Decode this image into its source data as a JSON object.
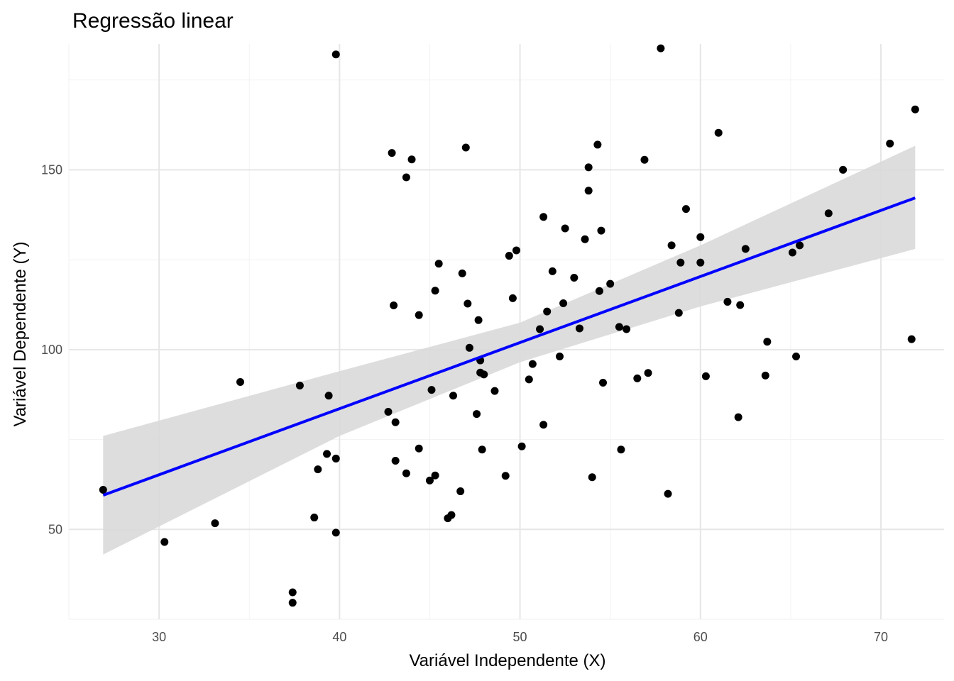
{
  "chart_data": {
    "type": "scatter",
    "title": "Regressão linear",
    "xlabel": "Variável Independente (X)",
    "ylabel": "Variável Dependente (Y)",
    "xlim": [
      25,
      73.5
    ],
    "ylim": [
      25,
      185
    ],
    "x_ticks": [
      30,
      40,
      50,
      60,
      70
    ],
    "y_ticks": [
      50,
      100,
      150
    ],
    "grid": true,
    "legend": "none",
    "colors": {
      "points": "#000000",
      "line": "#0000ff",
      "band": "#d9d9d9",
      "grid_major": "#e6e6e6",
      "grid_minor": "#f2f2f2"
    },
    "regression": {
      "x_start": 26.9,
      "y_start": 59.5,
      "x_end": 71.9,
      "y_end": 142.2,
      "band": [
        [
          26.9,
          43.0,
          76.0
        ],
        [
          40,
          76.0,
          94.0
        ],
        [
          50,
          96.5,
          107.5
        ],
        [
          60,
          112.0,
          129.0
        ],
        [
          71.9,
          128.0,
          156.7
        ]
      ]
    },
    "points": [
      [
        26.9,
        61.0
      ],
      [
        30.3,
        46.5
      ],
      [
        33.1,
        51.7
      ],
      [
        34.5,
        91.0
      ],
      [
        37.4,
        32.5
      ],
      [
        37.4,
        29.6
      ],
      [
        37.8,
        90.0
      ],
      [
        38.6,
        53.3
      ],
      [
        38.8,
        66.7
      ],
      [
        39.3,
        71.0
      ],
      [
        39.4,
        87.2
      ],
      [
        39.8,
        182.1
      ],
      [
        39.8,
        69.7
      ],
      [
        39.8,
        49.1
      ],
      [
        42.7,
        82.7
      ],
      [
        42.9,
        154.7
      ],
      [
        43.0,
        112.3
      ],
      [
        43.1,
        79.8
      ],
      [
        43.1,
        69.1
      ],
      [
        43.7,
        147.9
      ],
      [
        43.7,
        65.6
      ],
      [
        44.0,
        152.9
      ],
      [
        44.4,
        109.6
      ],
      [
        44.4,
        72.5
      ],
      [
        45.0,
        63.6
      ],
      [
        45.1,
        88.8
      ],
      [
        45.3,
        65.0
      ],
      [
        45.3,
        116.4
      ],
      [
        45.5,
        123.9
      ],
      [
        46.0,
        53.1
      ],
      [
        46.2,
        54.0
      ],
      [
        46.3,
        87.2
      ],
      [
        46.7,
        60.6
      ],
      [
        46.8,
        121.2
      ],
      [
        47.0,
        156.2
      ],
      [
        47.1,
        112.8
      ],
      [
        47.2,
        100.5
      ],
      [
        47.6,
        82.1
      ],
      [
        47.7,
        108.2
      ],
      [
        47.8,
        97.0
      ],
      [
        47.8,
        93.6
      ],
      [
        47.9,
        72.2
      ],
      [
        48.0,
        93.1
      ],
      [
        48.6,
        88.5
      ],
      [
        49.2,
        64.9
      ],
      [
        49.4,
        126.1
      ],
      [
        49.6,
        114.3
      ],
      [
        49.8,
        127.6
      ],
      [
        50.1,
        73.1
      ],
      [
        50.5,
        91.7
      ],
      [
        50.7,
        96.0
      ],
      [
        51.1,
        105.7
      ],
      [
        51.3,
        136.9
      ],
      [
        51.3,
        79.1
      ],
      [
        51.5,
        110.6
      ],
      [
        51.8,
        121.8
      ],
      [
        52.2,
        98.1
      ],
      [
        52.4,
        112.9
      ],
      [
        52.5,
        133.7
      ],
      [
        53.0,
        120.0
      ],
      [
        53.3,
        105.9
      ],
      [
        53.6,
        130.7
      ],
      [
        53.8,
        144.2
      ],
      [
        53.8,
        150.7
      ],
      [
        54.0,
        64.5
      ],
      [
        54.3,
        157.0
      ],
      [
        54.4,
        116.3
      ],
      [
        54.5,
        133.1
      ],
      [
        54.6,
        90.8
      ],
      [
        55.0,
        118.3
      ],
      [
        55.5,
        106.3
      ],
      [
        55.6,
        72.2
      ],
      [
        55.9,
        105.7
      ],
      [
        56.5,
        92.0
      ],
      [
        56.9,
        152.8
      ],
      [
        57.1,
        93.5
      ],
      [
        57.8,
        183.8
      ],
      [
        58.2,
        59.9
      ],
      [
        58.4,
        129.0
      ],
      [
        58.8,
        110.2
      ],
      [
        58.9,
        124.2
      ],
      [
        59.2,
        139.1
      ],
      [
        60.0,
        131.3
      ],
      [
        60.0,
        124.2
      ],
      [
        60.3,
        92.6
      ],
      [
        61.0,
        160.3
      ],
      [
        61.5,
        113.3
      ],
      [
        62.1,
        81.2
      ],
      [
        62.2,
        112.4
      ],
      [
        62.5,
        128.0
      ],
      [
        63.6,
        92.8
      ],
      [
        63.7,
        102.2
      ],
      [
        65.1,
        127.0
      ],
      [
        65.3,
        98.1
      ],
      [
        65.5,
        129.0
      ],
      [
        67.1,
        137.9
      ],
      [
        67.9,
        150.0
      ],
      [
        70.5,
        157.3
      ],
      [
        71.7,
        102.9
      ],
      [
        71.9,
        166.8
      ]
    ]
  }
}
